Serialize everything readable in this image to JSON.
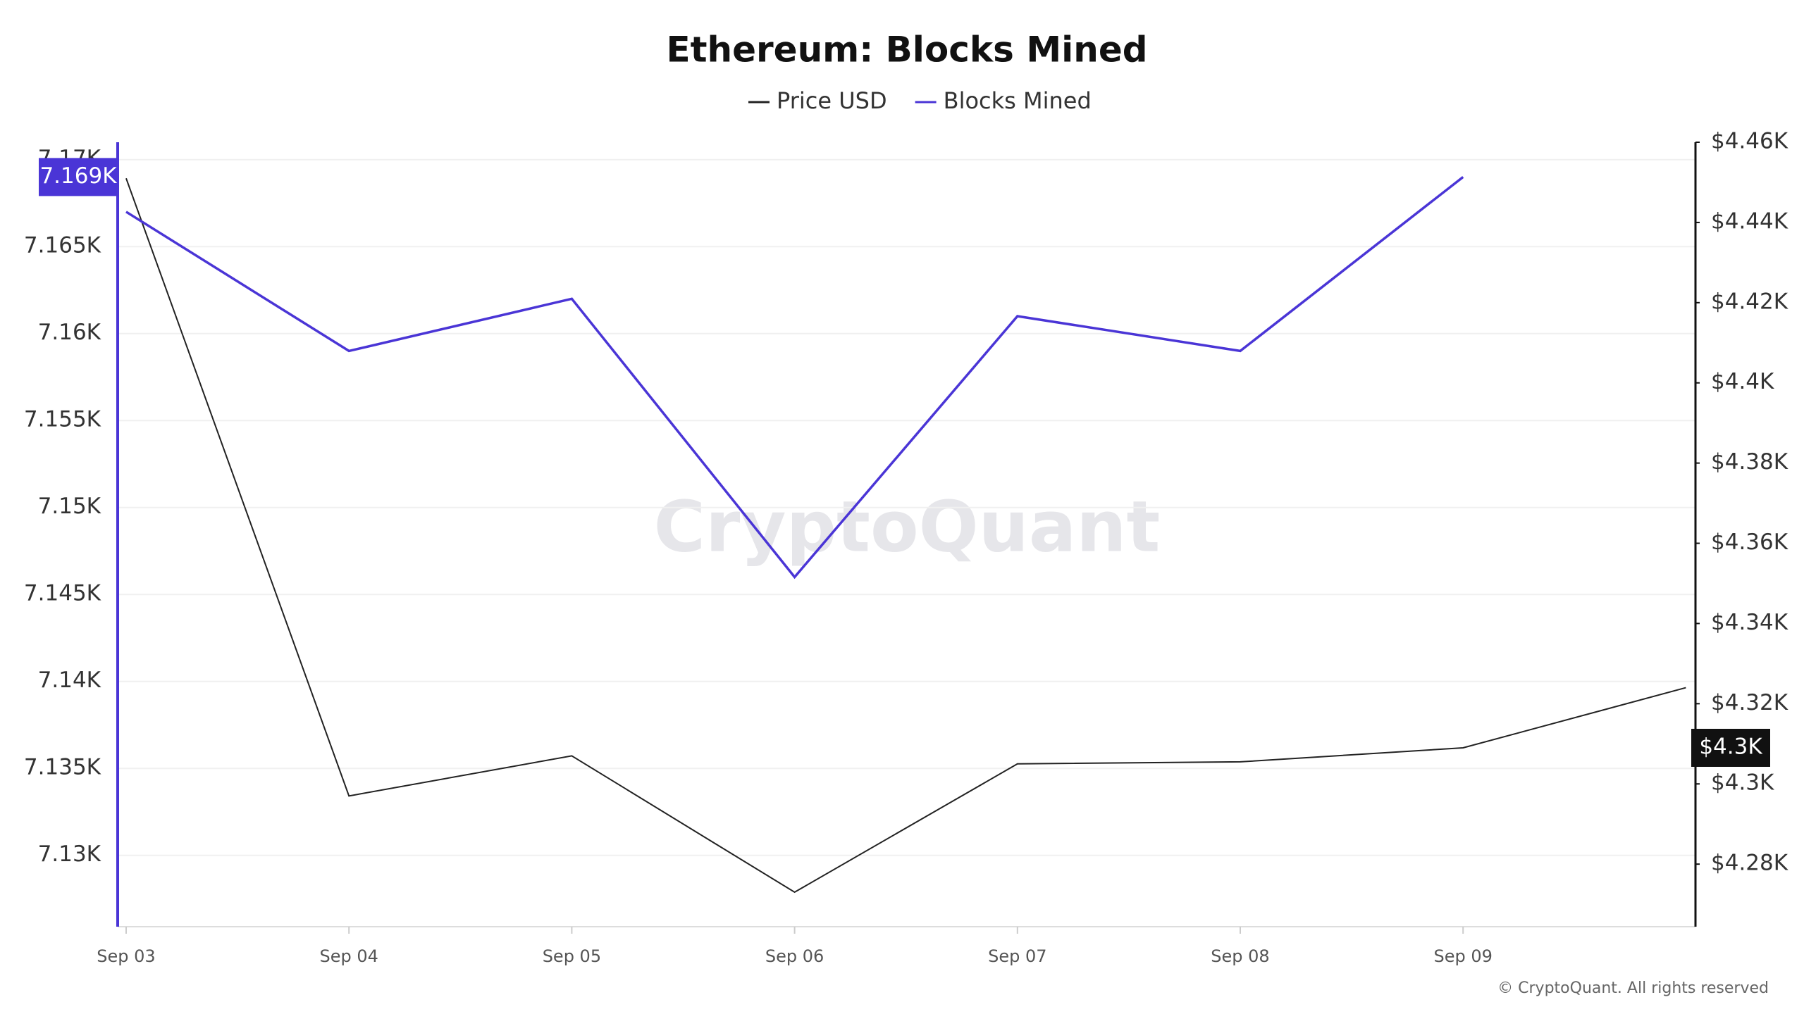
{
  "chart_data": {
    "type": "line",
    "title": "Ethereum: Blocks Mined",
    "categories": [
      "Sep 03",
      "Sep 04",
      "Sep 05",
      "Sep 06",
      "Sep 07",
      "Sep 08",
      "Sep 09",
      null
    ],
    "series": [
      {
        "name": "Price USD",
        "color": "#222222",
        "axis": "y2",
        "values": [
          4451,
          4297,
          4307,
          4273,
          4305,
          4305.5,
          4309,
          4324
        ],
        "badge": "$4.3K"
      },
      {
        "name": "Blocks Mined",
        "color": "#4a35d6",
        "values": [
          7167,
          7159,
          7162,
          7146,
          7161,
          7159,
          7169,
          null
        ],
        "badge": "7.169K"
      }
    ],
    "ylim": [
      7125.9,
      7171
    ],
    "yticks": [
      {
        "value": 7130,
        "label": "7.13K"
      },
      {
        "value": 7135,
        "label": "7.135K"
      },
      {
        "value": 7140,
        "label": "7.14K"
      },
      {
        "value": 7145,
        "label": "7.145K"
      },
      {
        "value": 7150,
        "label": "7.15K"
      },
      {
        "value": 7155,
        "label": "7.155K"
      },
      {
        "value": 7160,
        "label": "7.16K"
      },
      {
        "value": 7165,
        "label": "7.165K"
      },
      {
        "value": 7170,
        "label": "7.17K"
      }
    ],
    "y2lim": [
      4264.4,
      4460
    ],
    "y2ticks": [
      {
        "value": 4280,
        "label": "$4.28K"
      },
      {
        "value": 4300,
        "label": "$4.3K"
      },
      {
        "value": 4320,
        "label": "$4.32K"
      },
      {
        "value": 4340,
        "label": "$4.34K"
      },
      {
        "value": 4360,
        "label": "$4.36K"
      },
      {
        "value": 4380,
        "label": "$4.38K"
      },
      {
        "value": 4400,
        "label": "$4.4K"
      },
      {
        "value": 4420,
        "label": "$4.42K"
      },
      {
        "value": 4440,
        "label": "$4.44K"
      },
      {
        "value": 4460,
        "label": "$4.46K"
      }
    ],
    "grid": true,
    "legend": "top",
    "watermark": "CryptoQuant",
    "footer": "© CryptoQuant. All rights reserved"
  }
}
